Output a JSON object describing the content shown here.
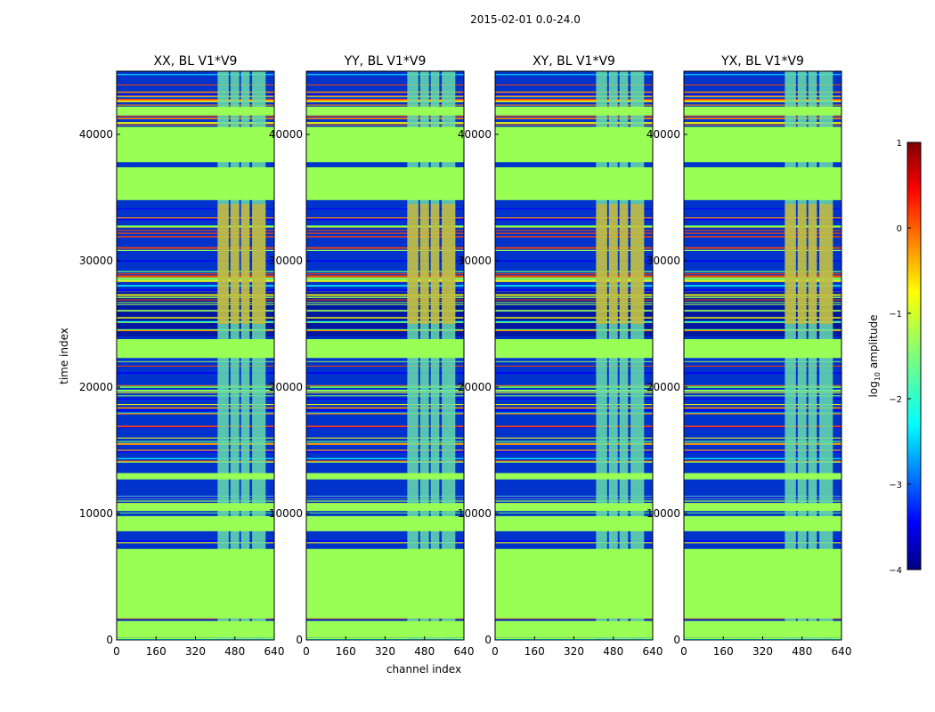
{
  "chart_data": {
    "type": "heatmap",
    "title": "2015-02-01 0.0-24.0",
    "xlabel": "channel index",
    "ylabel": "time index",
    "colorbar_label": "log10 amplitude",
    "colorbar_label_base": "log",
    "colorbar_label_sub": "10",
    "colorbar_label_rest": " amplitude",
    "colorbar_range": [
      -4,
      1
    ],
    "colorbar_ticks": [
      "1",
      "0",
      "−1",
      "−2",
      "−3",
      "−4"
    ],
    "xlim": [
      0,
      640
    ],
    "ylim": [
      0,
      45000
    ],
    "xticks": [
      "0",
      "160",
      "320",
      "480",
      "640"
    ],
    "yticks": [
      "0",
      "10000",
      "20000",
      "30000",
      "40000"
    ],
    "panels": [
      {
        "name": "XX",
        "title": "XX, BL V1*V9"
      },
      {
        "name": "YY",
        "title": "YY, BL V1*V9"
      },
      {
        "name": "XY",
        "title": "XY, BL V1*V9"
      },
      {
        "name": "YX",
        "title": "YX, BL V1*V9"
      }
    ],
    "flagged_time_ranges": [
      [
        200,
        1500
      ],
      [
        1700,
        7200
      ],
      [
        8600,
        9800
      ],
      [
        10200,
        10800
      ],
      [
        12700,
        13200
      ],
      [
        22300,
        23800
      ],
      [
        34800,
        37400
      ],
      [
        37800,
        40600
      ],
      [
        41500,
        42200
      ]
    ],
    "rfi_channel_ranges": [
      [
        410,
        455
      ],
      [
        462,
        498
      ],
      [
        505,
        540
      ],
      [
        550,
        605
      ]
    ],
    "colors": {
      "flagged": "#99ff55",
      "background": "#0033cc",
      "deep": "#000080",
      "rfi": "#66ddaa",
      "hot": "#ffaa00"
    }
  }
}
